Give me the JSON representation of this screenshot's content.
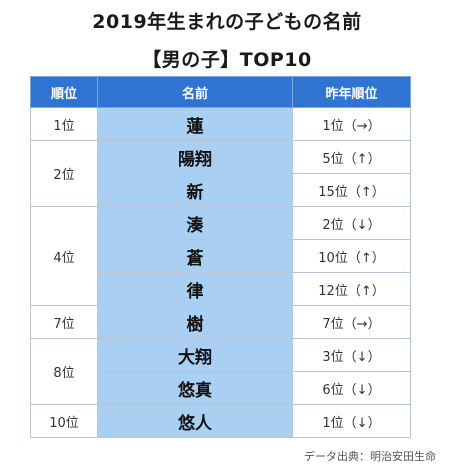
{
  "title_line1": "2019年生まれの子どもの名前",
  "title_line2": "【男の子】TOP10",
  "table": {
    "headers": [
      "順位",
      "名前",
      "昨年順位"
    ],
    "rows": [
      {
        "rank": "1位",
        "name": "蓮",
        "prev": "1位（→）"
      },
      {
        "rank": "2位",
        "name": "陽翔",
        "prev": "5位（↑）"
      },
      {
        "rank": "",
        "name": "新",
        "prev": "15位（↑）"
      },
      {
        "rank": "4位",
        "name": "湊",
        "prev": "2位（↓）"
      },
      {
        "rank": "",
        "name": "蒼",
        "prev": "10位（↑）"
      },
      {
        "rank": "",
        "name": "律",
        "prev": "12位（↑）"
      },
      {
        "rank": "7位",
        "name": "樹",
        "prev": "7位（→）"
      },
      {
        "rank": "8位",
        "name": "大翔",
        "prev": "3位（↓）"
      },
      {
        "rank": "",
        "name": "悠真",
        "prev": "6位（↓）"
      },
      {
        "rank": "10位",
        "name": "悠人",
        "prev": "1位（↓）"
      }
    ]
  },
  "source": "データ出典：明治安田生命",
  "colors": {
    "header_bg": "#2e74d0",
    "name_column_bg": "#a9cff3"
  }
}
